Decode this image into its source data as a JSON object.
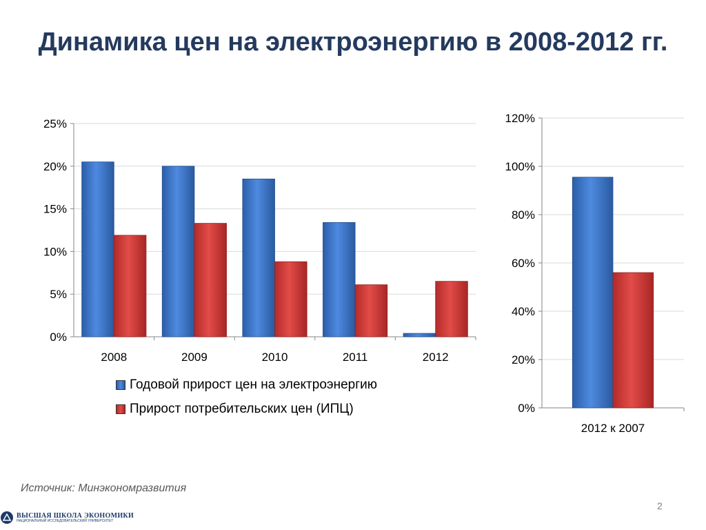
{
  "title": "Динамика цен на электроэнергию в 2008-2012 гг.",
  "source": "Источник: Минэкономразвития",
  "page_number": "2",
  "logo": {
    "line1": "ВЫСШАЯ ШКОЛА ЭКОНОМИКИ",
    "line2": "НАЦИОНАЛЬНЫЙ ИССЛЕДОВАТЕЛЬСКИЙ УНИВЕРСИТЕТ"
  },
  "colors": {
    "series1": "#3a74c6",
    "series2": "#cf3b3a"
  },
  "chart_data": [
    {
      "type": "bar",
      "categories": [
        "2008",
        "2009",
        "2010",
        "2011",
        "2012"
      ],
      "series": [
        {
          "name": "Годовой прирост цен на электроэнергию",
          "values": [
            20.5,
            20.0,
            18.5,
            13.4,
            0.4
          ]
        },
        {
          "name": "Прирост потребительских цен (ИПЦ)",
          "values": [
            11.9,
            13.3,
            8.8,
            6.1,
            6.5
          ]
        }
      ],
      "ylim": [
        0,
        25
      ],
      "yticks": [
        "0%",
        "5%",
        "10%",
        "15%",
        "20%",
        "25%"
      ],
      "grid": true,
      "legend": "bottom"
    },
    {
      "type": "bar",
      "categories": [
        "2012 к 2007"
      ],
      "series": [
        {
          "name": "Годовой прирост цен на электроэнергию",
          "values": [
            95.5
          ]
        },
        {
          "name": "Прирост потребительских цен (ИПЦ)",
          "values": [
            56
          ]
        }
      ],
      "ylim": [
        0,
        120
      ],
      "yticks": [
        "0%",
        "20%",
        "40%",
        "60%",
        "80%",
        "100%",
        "120%"
      ],
      "grid": true
    }
  ]
}
